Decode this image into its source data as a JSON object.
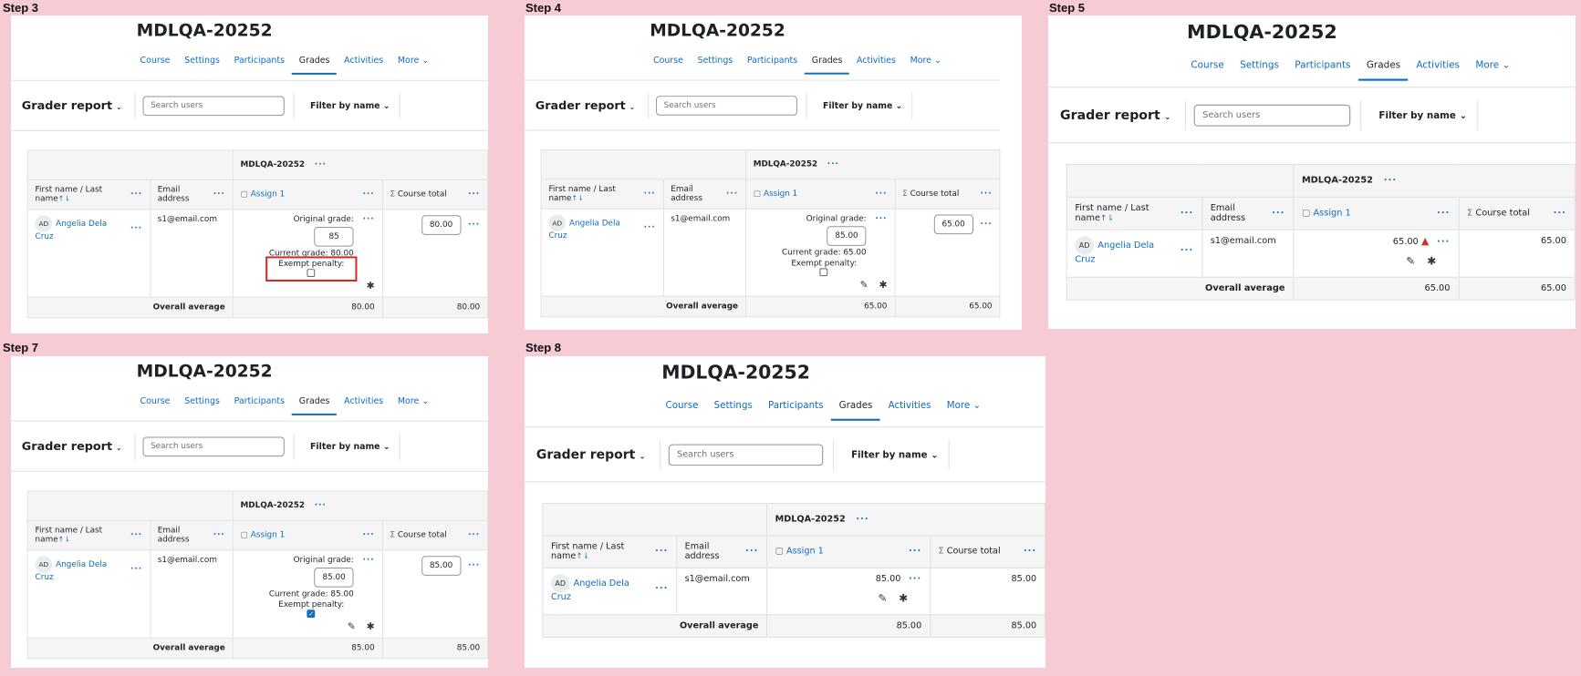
{
  "course": {
    "title": "MDLQA-20252",
    "tabs": [
      "Course",
      "Settings",
      "Participants",
      "Grades",
      "Activities",
      "More"
    ],
    "active_tab": "Grades"
  },
  "report": {
    "title": "Grader report",
    "search_placeholder": "Search users",
    "filter_label": "Filter by name"
  },
  "columns": {
    "category": "MDLQA-20252",
    "name": "First name / Last name",
    "email": "Email address",
    "assign": "Assign 1",
    "total": "Course total",
    "overall": "Overall average"
  },
  "user": {
    "initials": "AD",
    "name": "Angelia Dela Cruz",
    "email": "s1@email.com"
  },
  "labels": {
    "original_grade": "Original grade:",
    "exempt_penalty": "Exempt penalty:",
    "current_grade_prefix": "Current grade: "
  },
  "steps": [
    {
      "label": "Step 3",
      "original": "85",
      "current": "80.00",
      "exempt_checked": false,
      "total": "80.00",
      "avg_assign": "80.00",
      "avg_total": "80.00",
      "highlight_exempt": true
    },
    {
      "label": "Step 4",
      "original": "85.00",
      "current": "65.00",
      "exempt_checked": false,
      "total": "65.00",
      "avg_assign": "65.00",
      "avg_total": "65.00"
    },
    {
      "label": "Step 5",
      "grade": "65.00",
      "warning": true,
      "total": "65.00",
      "avg_assign": "65.00",
      "avg_total": "65.00"
    },
    {
      "label": "Step 7",
      "original": "85.00",
      "current": "85.00",
      "exempt_checked": true,
      "total": "85.00",
      "avg_assign": "85.00",
      "avg_total": "85.00"
    },
    {
      "label": "Step 8",
      "grade": "85.00",
      "warning": false,
      "total": "85.00",
      "avg_assign": "85.00",
      "avg_total": "85.00"
    }
  ]
}
